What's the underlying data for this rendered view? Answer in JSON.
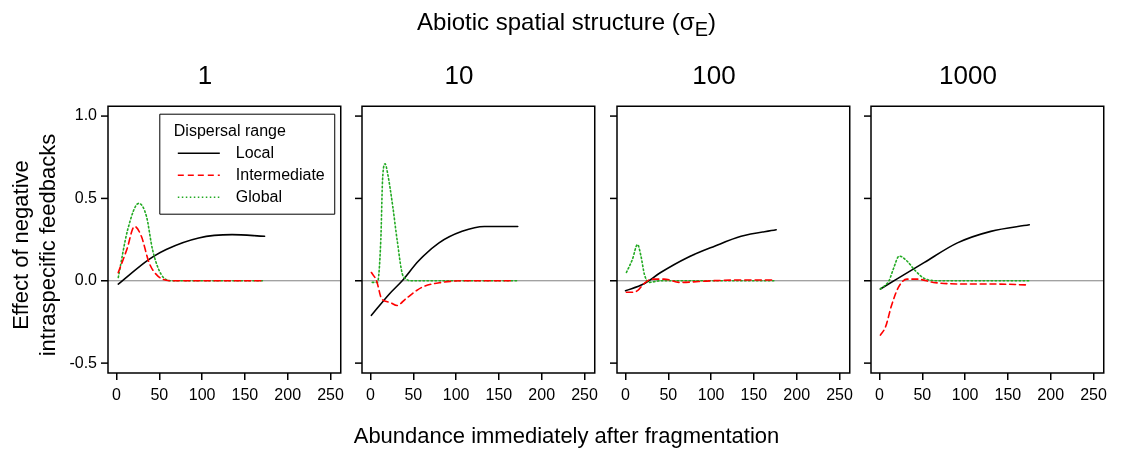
{
  "chart_data": [
    {
      "type": "line",
      "title": "1",
      "annotations": [
        "Abiotic spatial structure (σ$_{E}$)"
      ],
      "xlabel": "Abundance immediately after fragmentation",
      "ylabel": "Effect of negative intraspecific feedbacks",
      "xlim": [
        -10,
        262
      ],
      "xticks": [
        0,
        50,
        100,
        150,
        200,
        250
      ],
      "ylim": [
        -0.56,
        1.06
      ],
      "yticks": [
        -0.5,
        {
          "value": 0,
          "label": "0.0"
        },
        0.5,
        {
          "value": 1,
          "label": "1.0"
        }
      ],
      "ref_lines": [
        {
          "axis": "y",
          "value": 0,
          "color": "#808080"
        }
      ],
      "legend": "top right",
      "legend_title": "Dispersal range",
      "series": [
        {
          "name": "Local",
          "color": "#000000",
          "line_style": "solid",
          "x": [
            2,
            38,
            58,
            96,
            135,
            173
          ],
          "values": [
            -0.02,
            0.13,
            0.19,
            0.26,
            0.28,
            0.27
          ]
        },
        {
          "name": "Intermediate",
          "color": "#ff0000",
          "line_style": "dashed",
          "x": [
            2,
            12,
            21,
            29,
            38,
            48,
            65,
            170
          ],
          "values": [
            0.05,
            0.19,
            0.33,
            0.27,
            0.11,
            0.03,
            0,
            0
          ]
        },
        {
          "name": "Global",
          "color": "#22aa22",
          "line_style": "dotted",
          "x": [
            2,
            13,
            26,
            35,
            42,
            52,
            65,
            173
          ],
          "values": [
            0.02,
            0.31,
            0.47,
            0.39,
            0.19,
            0.04,
            0,
            0
          ]
        }
      ]
    },
    {
      "type": "line",
      "title": "10",
      "xlim": [
        -10,
        262
      ],
      "xticks": [
        0,
        50,
        100,
        150,
        200,
        250
      ],
      "ylim": [
        -0.56,
        1.06
      ],
      "yticks": [
        -0.5,
        0,
        0.5,
        1
      ],
      "tick_labels": "x",
      "ref_lines": [
        {
          "axis": "y",
          "value": 0,
          "color": "#808080"
        }
      ],
      "series": [
        {
          "color": "#000000",
          "line_style": "solid",
          "x": [
            1,
            22,
            37,
            56,
            80,
            107,
            133,
            172
          ],
          "values": [
            -0.21,
            -0.08,
            0,
            0.12,
            0.23,
            0.3,
            0.33,
            0.33
          ]
        },
        {
          "color": "#ff0000",
          "line_style": "dashed",
          "x": [
            1,
            7,
            13,
            22,
            31,
            41,
            60,
            83,
            110,
            164
          ],
          "values": [
            0.05,
            0,
            -0.11,
            -0.13,
            -0.15,
            -0.11,
            -0.04,
            -0.01,
            0,
            0
          ]
        },
        {
          "color": "#22aa22",
          "line_style": "dotted",
          "x": [
            2,
            8,
            12,
            14,
            17,
            20,
            26,
            31,
            38,
            49,
            172
          ],
          "values": [
            -0.01,
            -0.01,
            0.25,
            0.61,
            0.71,
            0.65,
            0.45,
            0.25,
            0.03,
            0,
            0
          ]
        }
      ]
    },
    {
      "type": "line",
      "title": "100",
      "xlim": [
        -10,
        262
      ],
      "xticks": [
        0,
        50,
        100,
        150,
        200,
        250
      ],
      "ylim": [
        -0.56,
        1.06
      ],
      "yticks": [
        -0.5,
        0,
        0.5,
        1
      ],
      "tick_labels": "x",
      "ref_lines": [
        {
          "axis": "y",
          "value": 0,
          "color": "#808080"
        }
      ],
      "series": [
        {
          "color": "#000000",
          "line_style": "solid",
          "x": [
            0,
            21,
            41,
            72,
            104,
            135,
            176
          ],
          "values": [
            -0.06,
            -0.02,
            0.05,
            0.14,
            0.21,
            0.27,
            0.31
          ]
        },
        {
          "color": "#ff0000",
          "line_style": "dashed",
          "x": [
            1,
            8,
            14,
            21,
            31,
            45,
            64,
            100,
            139,
            171
          ],
          "values": [
            -0.07,
            -0.07,
            -0.06,
            -0.02,
            0.01,
            0.01,
            -0.01,
            0,
            0.005,
            0.005
          ]
        },
        {
          "color": "#22aa22",
          "line_style": "dotted",
          "x": [
            1,
            8,
            14,
            18,
            22,
            27,
            41,
            174
          ],
          "values": [
            0.05,
            0.13,
            0.22,
            0.15,
            0.04,
            -0.01,
            0,
            0
          ]
        }
      ]
    },
    {
      "type": "line",
      "title": "1000",
      "xlim": [
        -10,
        262
      ],
      "xticks": [
        0,
        50,
        100,
        150,
        200,
        250
      ],
      "ylim": [
        -0.56,
        1.06
      ],
      "yticks": [
        -0.5,
        0,
        0.5,
        1
      ],
      "tick_labels": "x",
      "ref_lines": [
        {
          "axis": "y",
          "value": 0,
          "color": "#808080"
        }
      ],
      "series": [
        {
          "color": "#000000",
          "line_style": "solid",
          "x": [
            1,
            20,
            52,
            91,
            130,
            175
          ],
          "values": [
            -0.05,
            0.01,
            0.11,
            0.23,
            0.3,
            0.34
          ]
        },
        {
          "color": "#ff0000",
          "line_style": "dashed",
          "x": [
            1,
            7,
            14,
            22,
            32,
            44,
            63,
            102,
            137,
            171
          ],
          "values": [
            -0.33,
            -0.28,
            -0.15,
            -0.04,
            0.01,
            0.01,
            -0.01,
            -0.02,
            -0.02,
            -0.025
          ]
        },
        {
          "color": "#22aa22",
          "line_style": "dotted",
          "x": [
            1,
            11,
            16,
            23,
            32,
            42,
            54,
            71,
            175
          ],
          "values": [
            -0.05,
            0,
            0.07,
            0.15,
            0.12,
            0.06,
            0.01,
            0,
            0
          ]
        }
      ]
    }
  ]
}
